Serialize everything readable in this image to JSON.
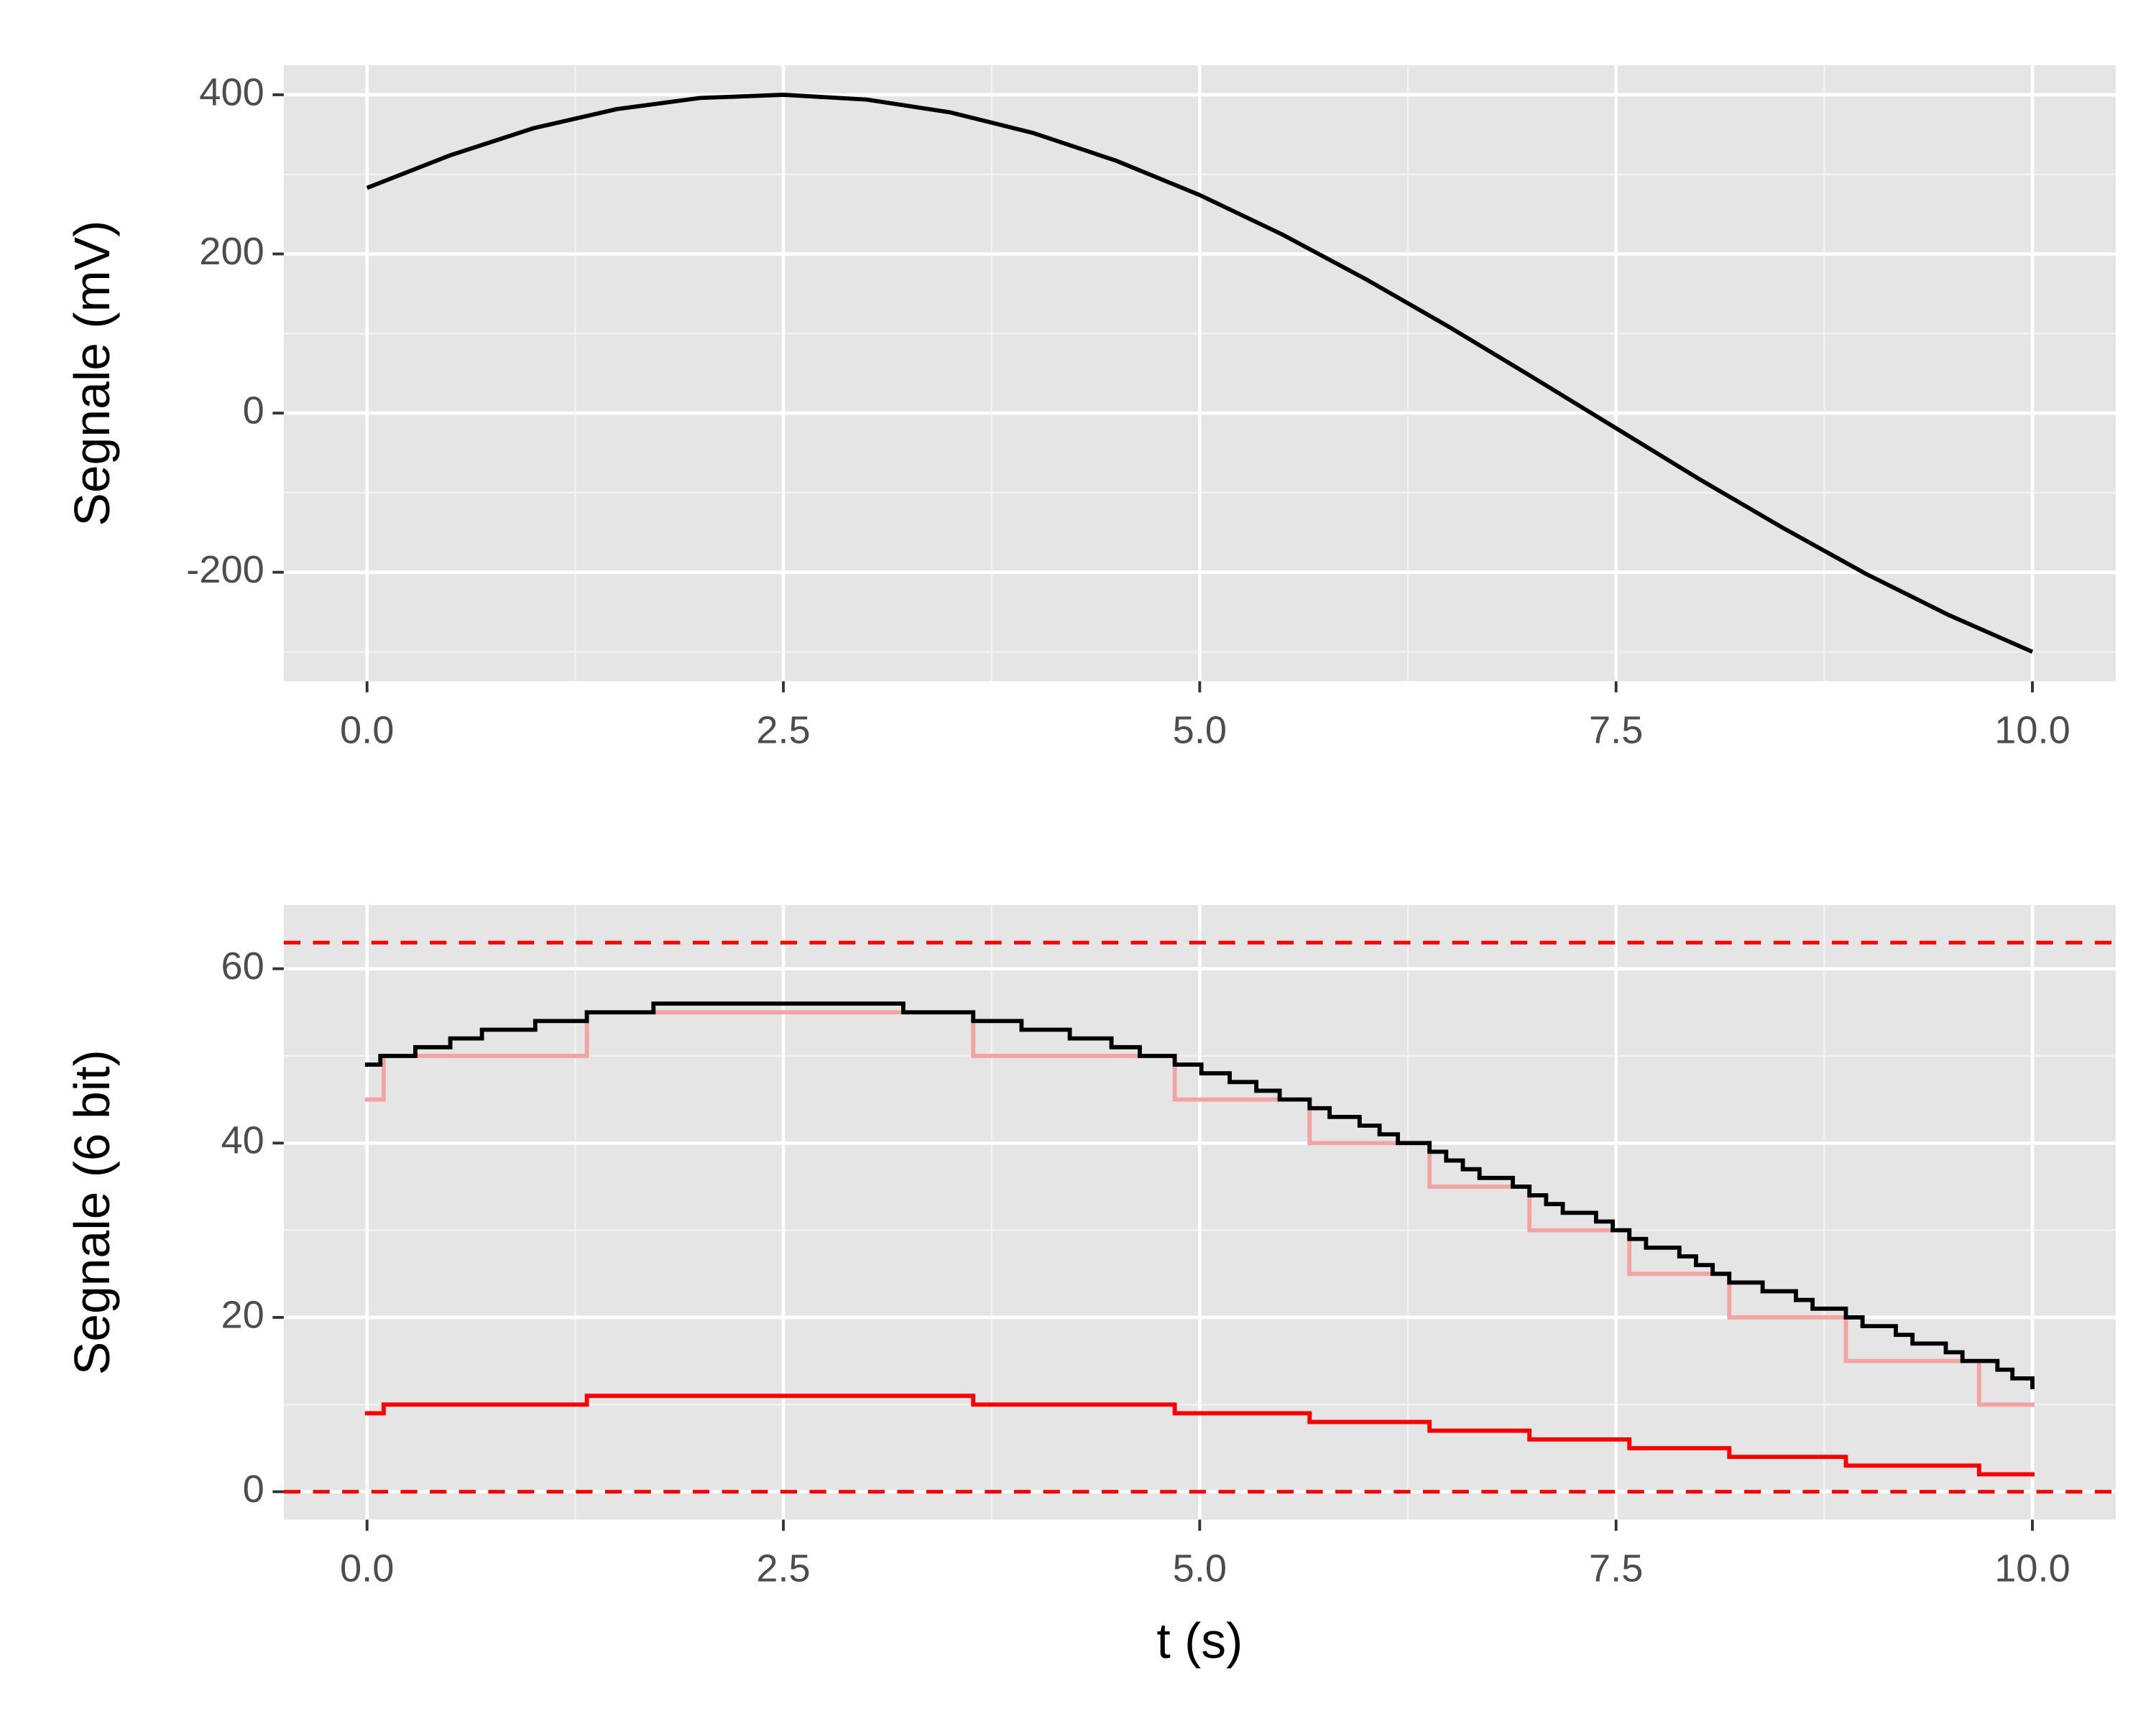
{
  "chart_data": [
    {
      "type": "line",
      "ylabel": "Segnale (mV)",
      "x": [
        0,
        0.5,
        1,
        1.5,
        2,
        2.5,
        3,
        3.5,
        4,
        4.5,
        5,
        5.5,
        6,
        6.5,
        7,
        7.5,
        8,
        8.5,
        9,
        9.5,
        10
      ],
      "values": [
        283,
        324,
        358,
        382,
        396,
        400,
        394,
        378,
        352,
        317,
        274,
        224,
        168,
        108,
        45,
        -19,
        -83,
        -144,
        -202,
        -254,
        -300
      ],
      "color": "#000000",
      "xlim": [
        -0.5,
        10.5
      ],
      "ylim": [
        -337,
        437
      ],
      "xticks": [
        {
          "value": 0,
          "label": "0.0"
        },
        2.5,
        {
          "value": 5,
          "label": "5.0"
        },
        7.5,
        {
          "value": 10,
          "label": "10.0"
        }
      ],
      "yticks": [
        -200,
        0,
        200,
        400
      ],
      "grid": true
    },
    {
      "type": "step",
      "ylabel": "Segnale (6 bit)",
      "xlabel": "t (s)",
      "series": [
        {
          "color": "#f4a3a3",
          "x": [
            0,
            0.1,
            1.32,
            3.64,
            4.85,
            5.66,
            6.38,
            6.98,
            7.58,
            8.18,
            8.88,
            9.68,
            10
          ],
          "values": [
            45,
            50,
            55,
            50,
            45,
            40,
            35,
            30,
            25,
            20,
            15,
            10,
            10
          ]
        },
        {
          "color": "#000000",
          "x": [
            0,
            0.08,
            0.29,
            0.5,
            0.69,
            1.01,
            1.32,
            1.72,
            3.22,
            3.64,
            3.93,
            4.22,
            4.47,
            4.64,
            4.85,
            5.01,
            5.18,
            5.34,
            5.48,
            5.66,
            5.78,
            5.96,
            6.08,
            6.19,
            6.38,
            6.48,
            6.58,
            6.68,
            6.88,
            6.98,
            7.08,
            7.18,
            7.38,
            7.48,
            7.58,
            7.68,
            7.88,
            7.98,
            8.08,
            8.18,
            8.38,
            8.58,
            8.68,
            8.88,
            8.98,
            9.18,
            9.28,
            9.48,
            9.58,
            9.79,
            9.88,
            10
          ],
          "values": [
            49,
            50,
            51,
            52,
            53,
            54,
            55,
            56,
            55,
            54,
            53,
            52,
            51,
            50,
            49,
            48,
            47,
            46,
            45,
            44,
            43,
            42,
            41,
            40,
            39,
            38,
            37,
            36,
            35,
            34,
            33,
            32,
            31,
            30,
            29,
            28,
            27,
            26,
            25,
            24,
            23,
            22,
            21,
            20,
            19,
            18,
            17,
            16,
            15,
            14,
            13,
            12
          ]
        },
        {
          "color": "#ff0000",
          "x": [
            0,
            0.1,
            1.32,
            3.64,
            4.85,
            5.66,
            6.38,
            6.98,
            7.58,
            8.18,
            8.88,
            9.68,
            10
          ],
          "values": [
            9,
            10,
            11,
            10,
            9,
            8,
            7,
            6,
            5,
            4,
            3,
            2,
            2
          ]
        }
      ],
      "hlines": [
        0,
        63
      ],
      "hline_color": "#ff0000",
      "xlim": [
        -0.5,
        10.5
      ],
      "ylim": [
        -3.2,
        67.3
      ],
      "xticks": [
        {
          "value": 0,
          "label": "0.0"
        },
        2.5,
        {
          "value": 5,
          "label": "5.0"
        },
        7.5,
        {
          "value": 10,
          "label": "10.0"
        }
      ],
      "yticks": [
        0,
        20,
        40,
        60
      ],
      "grid": true
    }
  ]
}
